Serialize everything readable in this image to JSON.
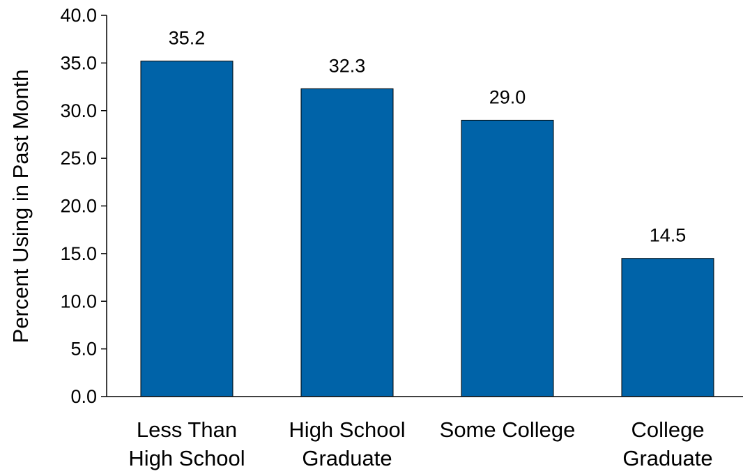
{
  "chart_data": {
    "type": "bar",
    "title": "",
    "xlabel": "",
    "ylabel": "Percent Using in Past Month",
    "categories": [
      [
        "Less Than",
        "High School"
      ],
      [
        "High School",
        "Graduate"
      ],
      [
        "Some College"
      ],
      [
        "College",
        "Graduate"
      ]
    ],
    "values": [
      35.2,
      32.3,
      29.0,
      14.5
    ],
    "data_labels": [
      "35.2",
      "32.3",
      "29.0",
      "14.5"
    ],
    "ylim": [
      0,
      40
    ],
    "yticks": [
      "0.0",
      "5.0",
      "10.0",
      "15.0",
      "20.0",
      "25.0",
      "30.0",
      "35.0",
      "40.0"
    ],
    "bar_color": "#0063A8",
    "grid": false,
    "legend": "none"
  }
}
